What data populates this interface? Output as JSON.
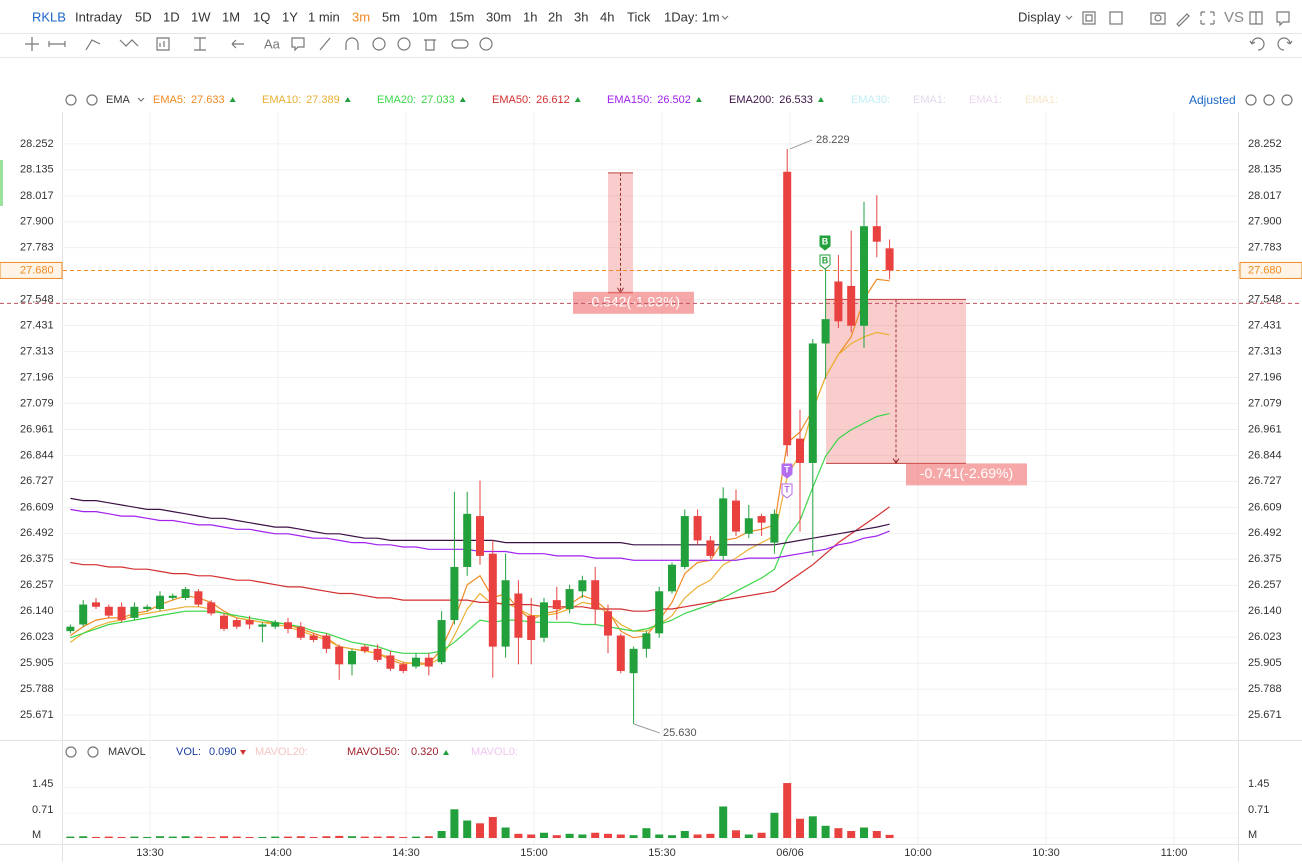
{
  "toolbar": {
    "symbol": "RKLB",
    "periods": [
      "Intraday",
      "5D",
      "1D",
      "1W",
      "1M",
      "1Q",
      "1Y",
      "1 min",
      "3m",
      "5m",
      "10m",
      "15m",
      "30m",
      "1h",
      "2h",
      "3h",
      "4h",
      "Tick"
    ],
    "active_period": "3m",
    "active_color": "#f08a24",
    "session": "1Day: 1m",
    "display": "Display",
    "compare": "VS"
  },
  "drawing_toolbar": {
    "text_tool": "Aa"
  },
  "price_pane": {
    "type": "candlestick",
    "indicator": "EMA",
    "adjust": "Adjusted",
    "up_color": "#22a03c",
    "down_color": "#e8413f",
    "ylim": [
      25.558,
      28.396
    ],
    "yticks": [
      28.252,
      28.135,
      28.017,
      {
        "value": 27.9,
        "label": "27.900"
      },
      27.783,
      27.548,
      27.431,
      27.313,
      27.196,
      27.079,
      26.961,
      26.844,
      26.727,
      26.609,
      26.492,
      26.375,
      26.257,
      {
        "value": 26.14,
        "label": "26.140"
      },
      26.023,
      25.905,
      25.788,
      25.671
    ],
    "xticks": [
      "13:30",
      "14:00",
      "14:30",
      "15:00",
      "15:30",
      "06/06",
      "10:00",
      "10:30",
      "11:00"
    ],
    "grid": true,
    "current_price": {
      "value": 27.68,
      "label": "27.680"
    },
    "current_color": "#f08a24",
    "alert_line": 27.531,
    "high_label": 28.229,
    "low_label": {
      "value": 25.63,
      "label": "25.630"
    },
    "open": [
      26.05,
      26.08,
      26.18,
      26.16,
      26.16,
      26.11,
      26.15,
      26.15,
      26.2,
      26.2,
      26.23,
      26.18,
      26.12,
      26.1,
      26.1,
      26.07,
      26.07,
      26.09,
      26.07,
      26.03,
      26.03,
      25.98,
      25.9,
      25.98,
      25.97,
      25.94,
      25.9,
      25.89,
      25.93,
      25.91,
      26.1,
      26.34,
      26.57,
      26.4,
      25.98,
      26.22,
      26.12,
      26.02,
      26.19,
      26.15,
      26.23,
      26.28,
      26.14,
      26.03,
      25.86,
      25.97,
      26.04,
      26.23,
      26.34,
      26.57,
      26.46,
      26.39,
      26.64,
      26.49,
      26.57,
      26.45,
      28.126,
      26.92,
      26.81,
      27.35,
      27.63,
      27.61,
      27.43,
      27.88,
      27.78
    ],
    "high": [
      26.08,
      26.19,
      26.2,
      26.17,
      26.18,
      26.18,
      26.17,
      26.23,
      26.22,
      26.25,
      26.24,
      26.19,
      26.13,
      26.11,
      26.12,
      26.09,
      26.1,
      26.11,
      26.09,
      26.04,
      26.04,
      25.99,
      25.97,
      25.99,
      25.99,
      25.96,
      25.91,
      25.95,
      25.95,
      26.14,
      26.68,
      26.68,
      26.73,
      26.46,
      26.4,
      26.28,
      26.2,
      26.2,
      26.25,
      26.26,
      26.3,
      26.34,
      26.17,
      26.04,
      25.98,
      26.05,
      26.25,
      26.36,
      26.6,
      26.6,
      26.48,
      26.7,
      26.69,
      26.62,
      26.58,
      26.6,
      28.229,
      27.05,
      27.37,
      27.7,
      27.75,
      27.86,
      27.99,
      28.02,
      27.82
    ],
    "low": [
      26.04,
      26.07,
      26.15,
      26.11,
      26.09,
      26.1,
      26.14,
      26.14,
      26.19,
      26.19,
      26.16,
      26.12,
      26.05,
      26.06,
      26.06,
      26.0,
      26.06,
      26.04,
      26.01,
      26.0,
      25.95,
      25.83,
      25.85,
      25.95,
      25.91,
      25.87,
      25.86,
      25.88,
      25.85,
      25.9,
      26.08,
      26.3,
      26.35,
      25.84,
      25.93,
      25.9,
      25.9,
      26.0,
      26.1,
      26.13,
      26.2,
      26.08,
      25.95,
      25.86,
      25.63,
      25.93,
      26.02,
      26.22,
      26.33,
      26.44,
      26.38,
      26.37,
      26.48,
      26.47,
      26.48,
      26.4,
      26.84,
      26.5,
      26.39,
      27.19,
      27.42,
      27.4,
      27.33,
      27.74,
      27.64
    ],
    "close": [
      26.07,
      26.17,
      26.16,
      26.12,
      26.1,
      26.16,
      26.16,
      26.21,
      26.21,
      26.24,
      26.17,
      26.13,
      26.06,
      26.07,
      26.08,
      26.08,
      26.09,
      26.06,
      26.02,
      26.01,
      25.97,
      25.9,
      25.96,
      25.96,
      25.92,
      25.88,
      25.87,
      25.93,
      25.89,
      26.1,
      26.34,
      26.58,
      26.39,
      25.98,
      26.28,
      26.02,
      26.01,
      26.18,
      26.15,
      26.24,
      26.28,
      26.15,
      26.03,
      25.87,
      25.97,
      26.04,
      26.23,
      26.35,
      26.57,
      26.46,
      26.39,
      26.65,
      26.5,
      26.56,
      26.54,
      26.58,
      26.89,
      26.81,
      27.35,
      27.46,
      27.45,
      27.43,
      27.88,
      27.81,
      27.68
    ],
    "emas": [
      {
        "name": "EMA5:",
        "color": "#f08a24",
        "values": [
          26.03,
          26.07,
          26.1,
          26.11,
          26.11,
          26.13,
          26.14,
          26.17,
          26.19,
          26.21,
          26.2,
          26.18,
          26.14,
          26.11,
          26.1,
          26.09,
          26.09,
          26.08,
          26.06,
          26.04,
          26.02,
          25.98,
          25.97,
          25.96,
          25.95,
          25.92,
          25.9,
          25.91,
          25.9,
          25.97,
          26.1,
          26.26,
          26.3,
          26.2,
          26.22,
          26.15,
          26.1,
          26.13,
          26.14,
          26.17,
          26.21,
          26.19,
          26.14,
          26.05,
          26.02,
          26.03,
          26.1,
          26.18,
          26.31,
          26.36,
          26.37,
          26.46,
          26.47,
          26.5,
          26.51,
          26.53,
          26.9,
          26.95,
          27.05,
          27.2,
          27.3,
          27.38,
          27.55,
          27.64,
          27.633
        ]
      },
      {
        "name": "EMA10:",
        "color": "#eab033",
        "values": [
          26.0,
          26.04,
          26.07,
          26.09,
          26.1,
          26.12,
          26.13,
          26.14,
          26.15,
          26.16,
          26.16,
          26.15,
          26.13,
          26.11,
          26.1,
          26.09,
          26.08,
          26.07,
          26.05,
          26.03,
          26.01,
          25.98,
          25.97,
          25.96,
          25.95,
          25.93,
          25.91,
          25.9,
          25.9,
          25.93,
          26.03,
          26.15,
          26.22,
          26.17,
          26.18,
          26.15,
          26.12,
          26.12,
          26.13,
          26.15,
          26.18,
          26.17,
          26.13,
          26.08,
          26.05,
          26.05,
          26.08,
          26.12,
          26.2,
          26.25,
          26.28,
          26.35,
          26.38,
          26.42,
          26.45,
          26.48,
          26.75,
          26.85,
          27.05,
          27.2,
          27.3,
          27.35,
          27.38,
          27.4,
          27.389
        ]
      },
      {
        "name": "EMA20:",
        "color": "#3cd64a",
        "values": [
          26.02,
          26.04,
          26.06,
          26.08,
          26.09,
          26.1,
          26.11,
          26.12,
          26.13,
          26.14,
          26.14,
          26.14,
          26.13,
          26.12,
          26.11,
          26.1,
          26.09,
          26.08,
          26.07,
          26.05,
          26.04,
          26.02,
          26.0,
          25.99,
          25.98,
          25.96,
          25.95,
          25.95,
          25.95,
          25.96,
          26.0,
          26.05,
          26.1,
          26.09,
          26.1,
          26.1,
          26.09,
          26.09,
          26.09,
          26.09,
          26.08,
          26.08,
          26.07,
          26.06,
          26.05,
          26.06,
          26.08,
          26.1,
          26.13,
          26.15,
          26.17,
          26.2,
          26.23,
          26.26,
          26.29,
          26.33,
          26.47,
          26.55,
          26.7,
          26.84,
          26.92,
          26.96,
          26.99,
          27.02,
          27.033
        ]
      },
      {
        "name": "EMA50:",
        "color": "#d32f2f",
        "values": [
          26.36,
          26.35,
          26.35,
          26.34,
          26.34,
          26.33,
          26.33,
          26.32,
          26.31,
          26.31,
          26.3,
          26.3,
          26.29,
          26.28,
          26.28,
          26.27,
          26.26,
          26.25,
          26.25,
          26.24,
          26.23,
          26.22,
          26.22,
          26.21,
          26.2,
          26.2,
          26.19,
          26.19,
          26.19,
          26.19,
          26.19,
          26.19,
          26.18,
          26.18,
          26.17,
          26.17,
          26.17,
          26.16,
          26.16,
          26.16,
          26.16,
          26.15,
          26.15,
          26.15,
          26.14,
          26.14,
          26.15,
          26.15,
          26.16,
          26.17,
          26.18,
          26.19,
          26.2,
          26.21,
          26.22,
          26.23,
          26.27,
          26.31,
          26.35,
          26.4,
          26.45,
          26.49,
          26.53,
          26.57,
          26.612
        ]
      },
      {
        "name": "EMA150:",
        "color": "#a020f0",
        "values": [
          26.6,
          26.59,
          26.59,
          26.58,
          26.57,
          26.57,
          26.56,
          26.55,
          26.55,
          26.54,
          26.53,
          26.53,
          26.52,
          26.51,
          26.51,
          26.5,
          26.49,
          26.49,
          26.48,
          26.47,
          26.47,
          26.46,
          26.45,
          26.45,
          26.44,
          26.44,
          26.43,
          26.43,
          26.42,
          26.42,
          26.42,
          26.42,
          26.41,
          26.41,
          26.41,
          26.4,
          26.4,
          26.4,
          26.39,
          26.39,
          26.39,
          26.38,
          26.38,
          26.38,
          26.37,
          26.37,
          26.37,
          26.37,
          26.37,
          26.37,
          26.37,
          26.37,
          26.37,
          26.38,
          26.38,
          26.38,
          26.39,
          26.4,
          26.41,
          26.42,
          26.44,
          26.45,
          26.47,
          26.48,
          26.502
        ]
      },
      {
        "name": "EMA200:",
        "color": "#3d1246",
        "values": [
          26.65,
          26.64,
          26.64,
          26.63,
          26.62,
          26.61,
          26.6,
          26.6,
          26.59,
          26.58,
          26.57,
          26.56,
          26.56,
          26.55,
          26.54,
          26.53,
          26.52,
          26.52,
          26.51,
          26.5,
          26.49,
          26.49,
          26.48,
          26.47,
          26.47,
          26.46,
          26.46,
          26.46,
          26.46,
          26.46,
          26.46,
          26.46,
          26.46,
          26.46,
          26.45,
          26.45,
          26.45,
          26.45,
          26.45,
          26.45,
          26.45,
          26.45,
          26.45,
          26.45,
          26.44,
          26.44,
          26.44,
          26.44,
          26.44,
          26.44,
          26.44,
          26.44,
          26.44,
          26.44,
          26.44,
          26.44,
          26.45,
          26.46,
          26.47,
          26.48,
          26.49,
          26.5,
          26.51,
          26.52,
          26.533
        ]
      }
    ],
    "inactive_emas": [
      {
        "name": "EMA30:",
        "color": "#bfeef5"
      },
      {
        "name": "EMA1:",
        "color": "#e2d9ee"
      },
      {
        "name": "EMA1:",
        "color": "#ecd8ee"
      },
      {
        "name": "EMA1:",
        "color": "#f6e6c8"
      }
    ],
    "measures": [
      {
        "from": 28.121,
        "to": 27.579,
        "label": "-0.542(-1.93%)"
      },
      {
        "from": 27.549,
        "to": 26.808,
        "label": "-0.741(-2.69%)"
      }
    ],
    "signals": [
      {
        "text": "B",
        "color": "#22a03c"
      },
      {
        "text": "B",
        "color": "#22a03c"
      },
      {
        "text": "T",
        "color": "#b36bf0"
      },
      {
        "text": "T",
        "color": "#b36bf0"
      }
    ]
  },
  "volume_pane": {
    "type": "bar",
    "header": [
      {
        "text": "MAVOL",
        "color": "#333333"
      },
      {
        "text": "VOL:",
        "color": "#1a3fa0"
      },
      {
        "text": "0.090",
        "color": "#1a3fa0"
      },
      {
        "text": "MAVOL20:",
        "color": "#f3c6c0"
      },
      {
        "text": "MAVOL50:",
        "color": "#a01f2a"
      },
      {
        "text": "0.320",
        "color": "#a01f2a"
      },
      {
        "text": "MAVOL0:",
        "color": "#efc6ee"
      }
    ],
    "ylim": [
      0,
      2
    ],
    "yticks": [
      1.45,
      0.71,
      {
        "value": 0,
        "label": "M"
      }
    ],
    "values": [
      0.04,
      0.05,
      0.03,
      0.04,
      0.03,
      0.04,
      0.03,
      0.05,
      0.04,
      0.05,
      0.04,
      0.03,
      0.05,
      0.04,
      0.03,
      0.03,
      0.04,
      0.04,
      0.05,
      0.03,
      0.05,
      0.06,
      0.05,
      0.04,
      0.04,
      0.05,
      0.03,
      0.04,
      0.05,
      0.2,
      0.82,
      0.5,
      0.42,
      0.6,
      0.3,
      0.12,
      0.1,
      0.15,
      0.08,
      0.12,
      0.1,
      0.15,
      0.12,
      0.1,
      0.08,
      0.28,
      0.1,
      0.08,
      0.2,
      0.1,
      0.12,
      0.9,
      0.22,
      0.1,
      0.15,
      0.72,
      1.57,
      0.55,
      0.62,
      0.35,
      0.28,
      0.2,
      0.3,
      0.2,
      0.09
    ]
  }
}
